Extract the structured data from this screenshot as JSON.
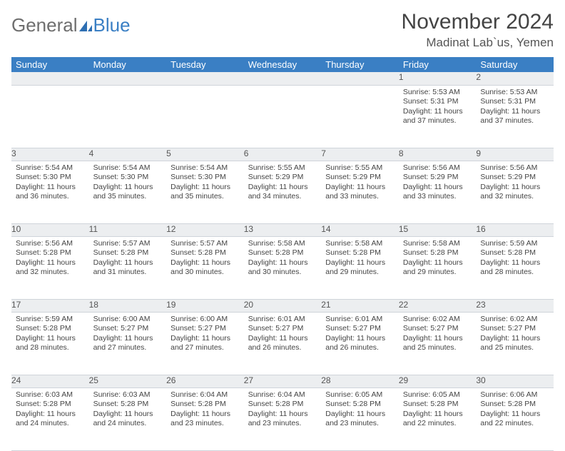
{
  "brand": {
    "general": "General",
    "blue": "Blue"
  },
  "title": "November 2024",
  "location": "Madinat Lab`us, Yemen",
  "colors": {
    "header_bg": "#3a7fc4",
    "header_text": "#ffffff",
    "daynum_bg": "#eceef0",
    "text": "#444444",
    "grid_border": "#cfd4da",
    "page_bg": "#ffffff"
  },
  "typography": {
    "title_fontsize": 30,
    "location_fontsize": 17,
    "header_fontsize": 13,
    "daynum_fontsize": 12,
    "body_fontsize": 10.5
  },
  "day_headers": [
    "Sunday",
    "Monday",
    "Tuesday",
    "Wednesday",
    "Thursday",
    "Friday",
    "Saturday"
  ],
  "weeks": [
    [
      null,
      null,
      null,
      null,
      null,
      {
        "n": "1",
        "sunrise": "Sunrise: 5:53 AM",
        "sunset": "Sunset: 5:31 PM",
        "daylight": "Daylight: 11 hours and 37 minutes."
      },
      {
        "n": "2",
        "sunrise": "Sunrise: 5:53 AM",
        "sunset": "Sunset: 5:31 PM",
        "daylight": "Daylight: 11 hours and 37 minutes."
      }
    ],
    [
      {
        "n": "3",
        "sunrise": "Sunrise: 5:54 AM",
        "sunset": "Sunset: 5:30 PM",
        "daylight": "Daylight: 11 hours and 36 minutes."
      },
      {
        "n": "4",
        "sunrise": "Sunrise: 5:54 AM",
        "sunset": "Sunset: 5:30 PM",
        "daylight": "Daylight: 11 hours and 35 minutes."
      },
      {
        "n": "5",
        "sunrise": "Sunrise: 5:54 AM",
        "sunset": "Sunset: 5:30 PM",
        "daylight": "Daylight: 11 hours and 35 minutes."
      },
      {
        "n": "6",
        "sunrise": "Sunrise: 5:55 AM",
        "sunset": "Sunset: 5:29 PM",
        "daylight": "Daylight: 11 hours and 34 minutes."
      },
      {
        "n": "7",
        "sunrise": "Sunrise: 5:55 AM",
        "sunset": "Sunset: 5:29 PM",
        "daylight": "Daylight: 11 hours and 33 minutes."
      },
      {
        "n": "8",
        "sunrise": "Sunrise: 5:56 AM",
        "sunset": "Sunset: 5:29 PM",
        "daylight": "Daylight: 11 hours and 33 minutes."
      },
      {
        "n": "9",
        "sunrise": "Sunrise: 5:56 AM",
        "sunset": "Sunset: 5:29 PM",
        "daylight": "Daylight: 11 hours and 32 minutes."
      }
    ],
    [
      {
        "n": "10",
        "sunrise": "Sunrise: 5:56 AM",
        "sunset": "Sunset: 5:28 PM",
        "daylight": "Daylight: 11 hours and 32 minutes."
      },
      {
        "n": "11",
        "sunrise": "Sunrise: 5:57 AM",
        "sunset": "Sunset: 5:28 PM",
        "daylight": "Daylight: 11 hours and 31 minutes."
      },
      {
        "n": "12",
        "sunrise": "Sunrise: 5:57 AM",
        "sunset": "Sunset: 5:28 PM",
        "daylight": "Daylight: 11 hours and 30 minutes."
      },
      {
        "n": "13",
        "sunrise": "Sunrise: 5:58 AM",
        "sunset": "Sunset: 5:28 PM",
        "daylight": "Daylight: 11 hours and 30 minutes."
      },
      {
        "n": "14",
        "sunrise": "Sunrise: 5:58 AM",
        "sunset": "Sunset: 5:28 PM",
        "daylight": "Daylight: 11 hours and 29 minutes."
      },
      {
        "n": "15",
        "sunrise": "Sunrise: 5:58 AM",
        "sunset": "Sunset: 5:28 PM",
        "daylight": "Daylight: 11 hours and 29 minutes."
      },
      {
        "n": "16",
        "sunrise": "Sunrise: 5:59 AM",
        "sunset": "Sunset: 5:28 PM",
        "daylight": "Daylight: 11 hours and 28 minutes."
      }
    ],
    [
      {
        "n": "17",
        "sunrise": "Sunrise: 5:59 AM",
        "sunset": "Sunset: 5:28 PM",
        "daylight": "Daylight: 11 hours and 28 minutes."
      },
      {
        "n": "18",
        "sunrise": "Sunrise: 6:00 AM",
        "sunset": "Sunset: 5:27 PM",
        "daylight": "Daylight: 11 hours and 27 minutes."
      },
      {
        "n": "19",
        "sunrise": "Sunrise: 6:00 AM",
        "sunset": "Sunset: 5:27 PM",
        "daylight": "Daylight: 11 hours and 27 minutes."
      },
      {
        "n": "20",
        "sunrise": "Sunrise: 6:01 AM",
        "sunset": "Sunset: 5:27 PM",
        "daylight": "Daylight: 11 hours and 26 minutes."
      },
      {
        "n": "21",
        "sunrise": "Sunrise: 6:01 AM",
        "sunset": "Sunset: 5:27 PM",
        "daylight": "Daylight: 11 hours and 26 minutes."
      },
      {
        "n": "22",
        "sunrise": "Sunrise: 6:02 AM",
        "sunset": "Sunset: 5:27 PM",
        "daylight": "Daylight: 11 hours and 25 minutes."
      },
      {
        "n": "23",
        "sunrise": "Sunrise: 6:02 AM",
        "sunset": "Sunset: 5:27 PM",
        "daylight": "Daylight: 11 hours and 25 minutes."
      }
    ],
    [
      {
        "n": "24",
        "sunrise": "Sunrise: 6:03 AM",
        "sunset": "Sunset: 5:28 PM",
        "daylight": "Daylight: 11 hours and 24 minutes."
      },
      {
        "n": "25",
        "sunrise": "Sunrise: 6:03 AM",
        "sunset": "Sunset: 5:28 PM",
        "daylight": "Daylight: 11 hours and 24 minutes."
      },
      {
        "n": "26",
        "sunrise": "Sunrise: 6:04 AM",
        "sunset": "Sunset: 5:28 PM",
        "daylight": "Daylight: 11 hours and 23 minutes."
      },
      {
        "n": "27",
        "sunrise": "Sunrise: 6:04 AM",
        "sunset": "Sunset: 5:28 PM",
        "daylight": "Daylight: 11 hours and 23 minutes."
      },
      {
        "n": "28",
        "sunrise": "Sunrise: 6:05 AM",
        "sunset": "Sunset: 5:28 PM",
        "daylight": "Daylight: 11 hours and 23 minutes."
      },
      {
        "n": "29",
        "sunrise": "Sunrise: 6:05 AM",
        "sunset": "Sunset: 5:28 PM",
        "daylight": "Daylight: 11 hours and 22 minutes."
      },
      {
        "n": "30",
        "sunrise": "Sunrise: 6:06 AM",
        "sunset": "Sunset: 5:28 PM",
        "daylight": "Daylight: 11 hours and 22 minutes."
      }
    ]
  ]
}
